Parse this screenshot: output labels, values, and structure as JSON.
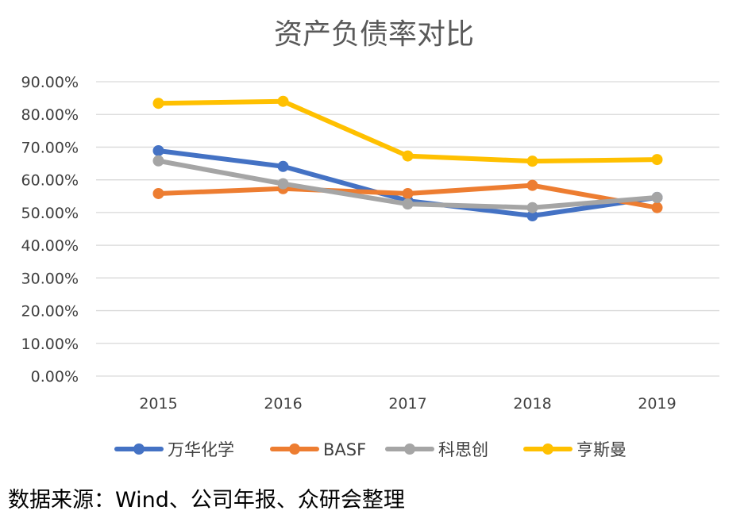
{
  "chart_data": {
    "type": "line",
    "title": "资产负债率对比",
    "categories": [
      "2015",
      "2016",
      "2017",
      "2018",
      "2019"
    ],
    "y_ticks": [
      "0.00%",
      "10.00%",
      "20.00%",
      "30.00%",
      "40.00%",
      "50.00%",
      "60.00%",
      "70.00%",
      "80.00%",
      "90.00%"
    ],
    "ylim": [
      0,
      90
    ],
    "grid": true,
    "legend_position": "bottom",
    "series": [
      {
        "name": "万华化学",
        "color": "#4472C4",
        "values": [
          68.9,
          64.1,
          53.6,
          49.0,
          54.6
        ]
      },
      {
        "name": "BASF",
        "color": "#ED7D31",
        "values": [
          55.8,
          57.3,
          55.8,
          58.3,
          51.5
        ]
      },
      {
        "name": "科思创",
        "color": "#A5A5A5",
        "values": [
          65.8,
          58.8,
          52.6,
          51.5,
          54.6
        ]
      },
      {
        "name": "亨斯曼",
        "color": "#FFC000",
        "values": [
          83.4,
          84.0,
          67.3,
          65.7,
          66.2
        ]
      }
    ]
  },
  "source_note": "数据来源：Wind、公司年报、众研会整理"
}
